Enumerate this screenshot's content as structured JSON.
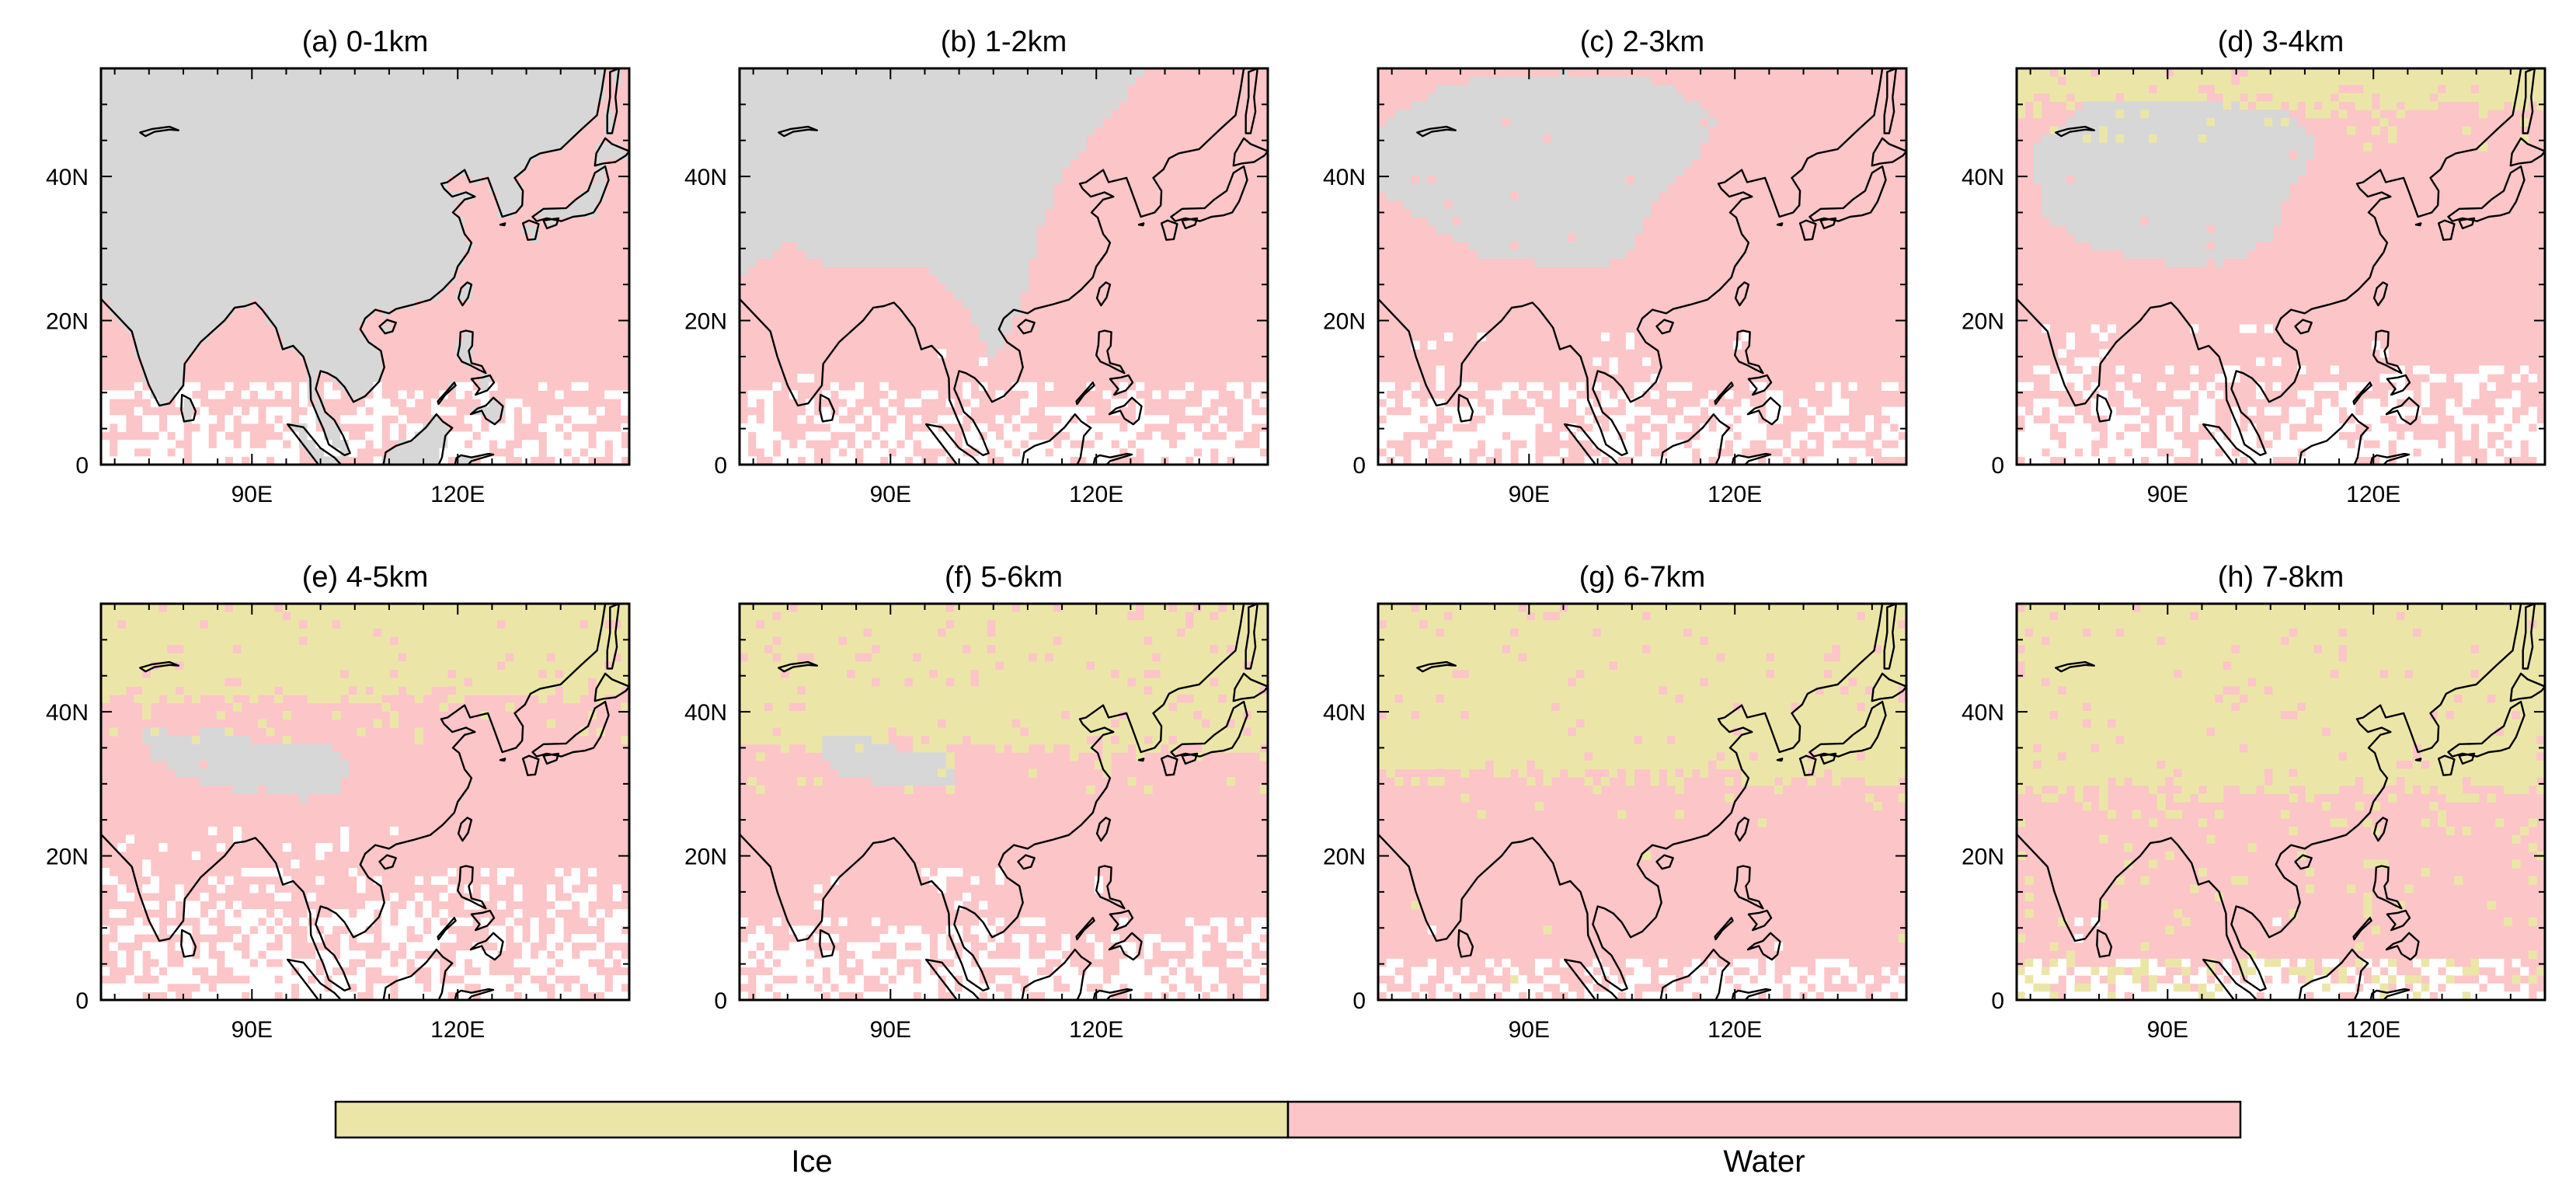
{
  "colors": {
    "ice": "#ebe6a8",
    "water": "#fcc5c8",
    "terrain": "#d7d7d7",
    "empty": "#ffffff",
    "coast": "#000000",
    "frame": "#000000"
  },
  "map_extent": {
    "lon": [
      68,
      145
    ],
    "lat": [
      0,
      55
    ]
  },
  "axis_ticks": {
    "lon": [
      {
        "value": 90,
        "label": "90E"
      },
      {
        "value": 120,
        "label": "120E"
      }
    ],
    "lat": [
      {
        "value": 0,
        "label": "0"
      },
      {
        "value": 20,
        "label": "20N"
      },
      {
        "value": 40,
        "label": "40N"
      }
    ]
  },
  "panels": [
    {
      "title": "(a) 0-1km",
      "ice_south_lat": 99,
      "terrain": "full",
      "sparse_below_lat": 11,
      "ice_fraction_below": 0.0
    },
    {
      "title": "(b) 1-2km",
      "ice_south_lat": 99,
      "terrain": "mid",
      "sparse_below_lat": 11,
      "ice_fraction_below": 0.0
    },
    {
      "title": "(c) 2-3km",
      "ice_south_lat": 99,
      "terrain": "plateau",
      "sparse_below_lat": 12,
      "ice_fraction_below": 0.0
    },
    {
      "title": "(d) 3-4km",
      "ice_south_lat": 50,
      "terrain": "plateau_small",
      "sparse_below_lat": 14,
      "ice_fraction_below": 0.0
    },
    {
      "title": "(e) 4-5km",
      "ice_south_lat": 42,
      "terrain": "tibet",
      "sparse_below_lat": 18,
      "ice_fraction_below": 0.0
    },
    {
      "title": "(f) 5-6km",
      "ice_south_lat": 35,
      "terrain": "tibet_small",
      "sparse_below_lat": 12,
      "ice_fraction_below": 0.0
    },
    {
      "title": "(g) 6-7km",
      "ice_south_lat": 31,
      "terrain": "none",
      "sparse_below_lat": 6,
      "ice_fraction_below": 0.03
    },
    {
      "title": "(h) 7-8km",
      "ice_south_lat": 29,
      "terrain": "none",
      "sparse_below_lat": 6,
      "ice_fraction_below": 0.45
    }
  ],
  "colorbar": {
    "labels": [
      "Ice",
      "Water"
    ]
  }
}
